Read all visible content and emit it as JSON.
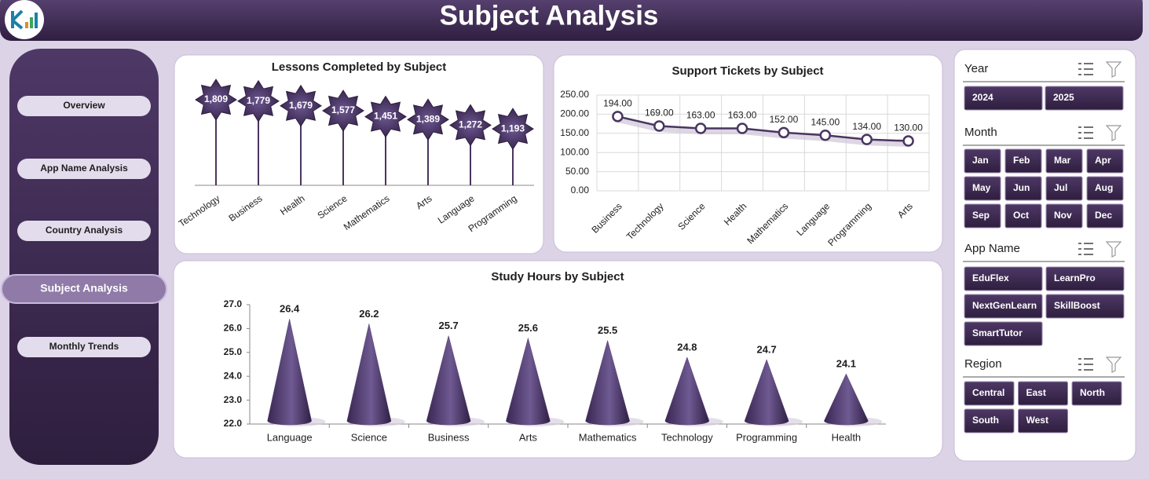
{
  "header": {
    "title": "Subject Analysis"
  },
  "nav": [
    "Overview",
    "App Name Analysis",
    "Country Analysis",
    "Subject Analysis",
    "Monthly Trends"
  ],
  "slicers": [
    {
      "title": "Year",
      "items": [
        "2024",
        "2025"
      ]
    },
    {
      "title": "Month",
      "items": [
        "Jan",
        "Feb",
        "Mar",
        "Apr",
        "May",
        "Jun",
        "Jul",
        "Aug",
        "Sep",
        "Oct",
        "Nov",
        "Dec"
      ]
    },
    {
      "title": "App Name",
      "items": [
        "EduFlex",
        "LearnPro",
        "NextGenLearn",
        "SkillBoost",
        "SmartTutor"
      ]
    },
    {
      "title": "Region",
      "items": [
        "Central",
        "East",
        "North",
        "South",
        "West"
      ]
    }
  ],
  "chart_data": [
    {
      "type": "lollipop",
      "title": "Lessons Completed by Subject",
      "color": "#4a3560",
      "categories": [
        "Technology",
        "Business",
        "Health",
        "Science",
        "Mathematics",
        "Arts",
        "Language",
        "Programming"
      ],
      "values": [
        1809,
        1779,
        1679,
        1577,
        1451,
        1389,
        1272,
        1193
      ],
      "value_labels": [
        "1,809",
        "1,779",
        "1,679",
        "1,577",
        "1,451",
        "1,389",
        "1,272",
        "1,193"
      ]
    },
    {
      "type": "line",
      "title": "Support Tickets by Subject",
      "color": "#4a3560",
      "grid": true,
      "categories": [
        "Business",
        "Technology",
        "Science",
        "Health",
        "Mathematics",
        "Language",
        "Programming",
        "Arts"
      ],
      "values": [
        194,
        169,
        163,
        163,
        152,
        145,
        134,
        130
      ],
      "value_labels": [
        "194.00",
        "169.00",
        "163.00",
        "163.00",
        "152.00",
        "145.00",
        "134.00",
        "130.00"
      ],
      "ylim": [
        0,
        250
      ],
      "yticks": [
        {
          "value": 0,
          "label": "0.00"
        },
        {
          "value": 50,
          "label": "50.00"
        },
        {
          "value": 100,
          "label": "100.00"
        },
        {
          "value": 150,
          "label": "150.00"
        },
        {
          "value": 200,
          "label": "200.00"
        },
        {
          "value": 250,
          "label": "250.00"
        }
      ]
    },
    {
      "type": "cone",
      "title": "Study Hours by Subject",
      "color": "#4e3a6b",
      "categories": [
        "Language",
        "Science",
        "Business",
        "Arts",
        "Mathematics",
        "Technology",
        "Programming",
        "Health"
      ],
      "values": [
        26.4,
        26.2,
        25.7,
        25.6,
        25.5,
        24.8,
        24.7,
        24.1
      ],
      "ylim": [
        22,
        27
      ],
      "yticks": [
        {
          "value": 22,
          "label": "22.0"
        },
        {
          "value": 23,
          "label": "23.0"
        },
        {
          "value": 24,
          "label": "24.0"
        },
        {
          "value": 25,
          "label": "25.0"
        },
        {
          "value": 26,
          "label": "26.0"
        },
        {
          "value": 27,
          "label": "27.0"
        }
      ]
    }
  ]
}
